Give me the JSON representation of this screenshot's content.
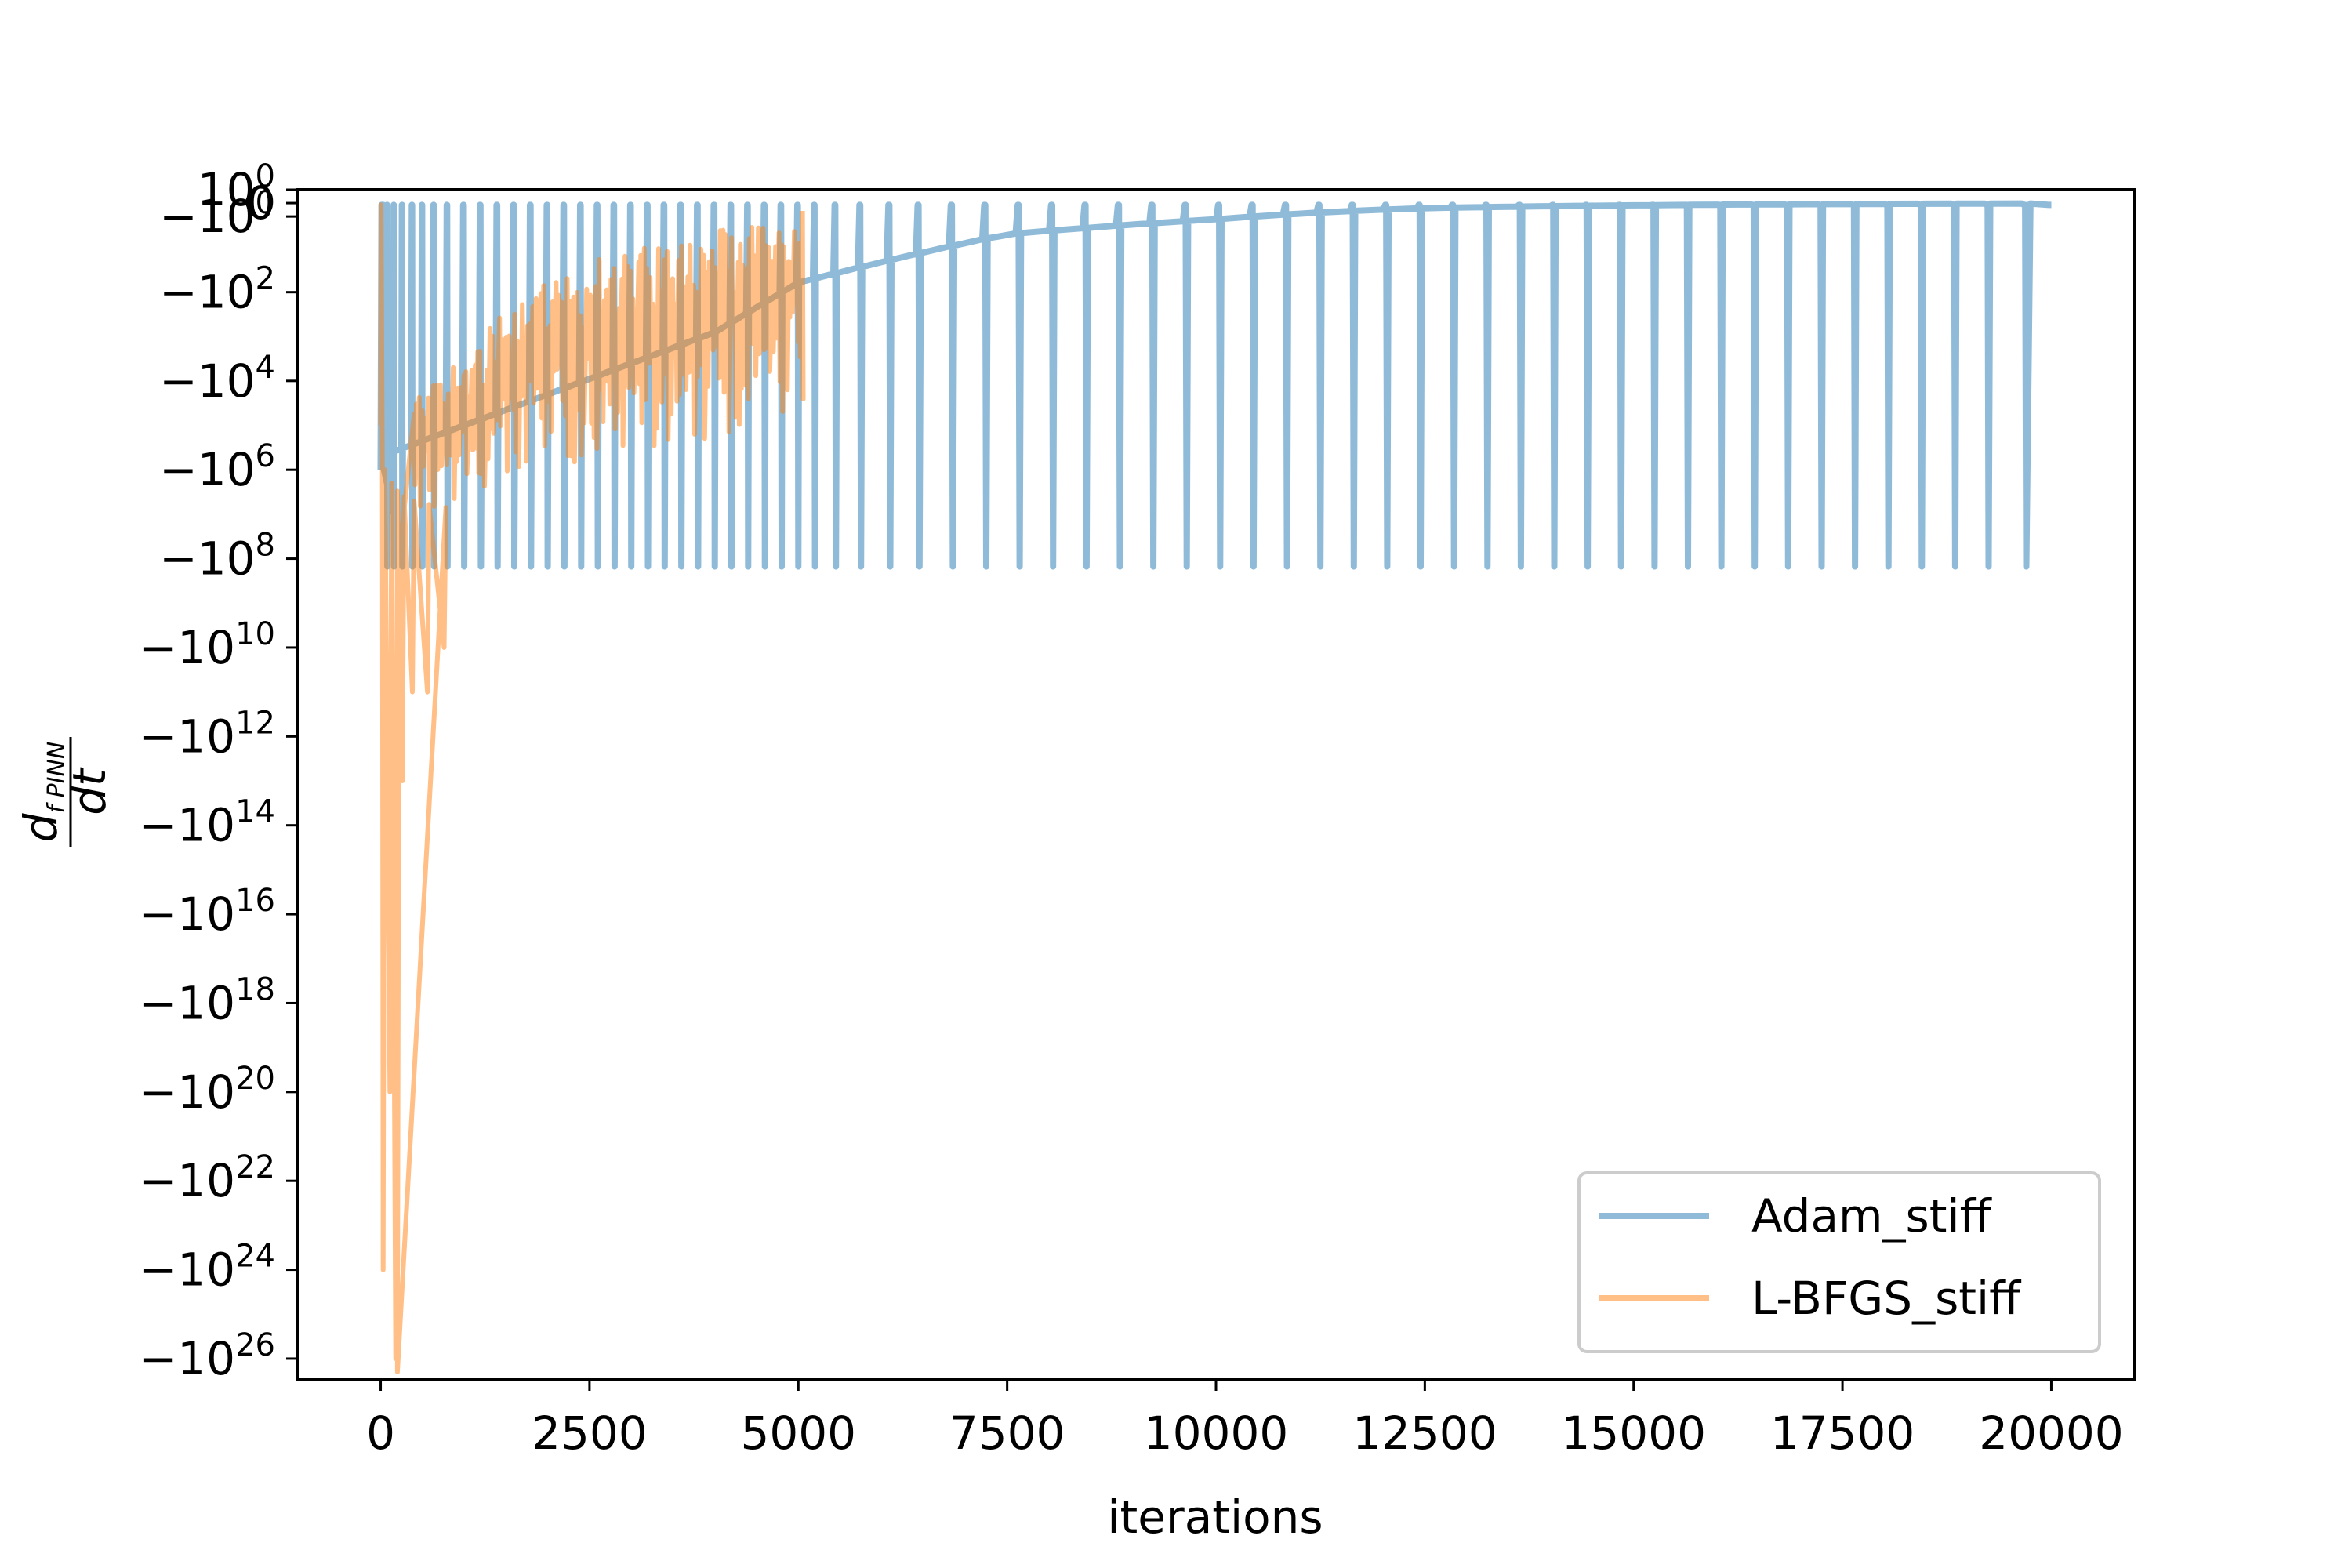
{
  "chart_data": {
    "type": "line",
    "title": "",
    "xlabel": "iterations",
    "ylabel": "d_{f PINN} / dt",
    "xlim": [
      -1000,
      21000
    ],
    "xticks": [
      0,
      2500,
      5000,
      7500,
      10000,
      12500,
      15000,
      17500,
      20000
    ],
    "xtick_labels": [
      "0",
      "2500",
      "5000",
      "7500",
      "10000",
      "12500",
      "15000",
      "17500",
      "20000"
    ],
    "yscale": "symlog",
    "ylim": [
      -3e+26,
      1
    ],
    "yticks": [
      {
        "value": 1,
        "base": "10",
        "exp": "0",
        "sign": ""
      },
      {
        "value": 0,
        "base": "0",
        "exp": "",
        "sign": ""
      },
      {
        "value": -1,
        "base": "10",
        "exp": "0",
        "sign": "−"
      },
      {
        "value": -100.0,
        "base": "10",
        "exp": "2",
        "sign": "−"
      },
      {
        "value": -10000.0,
        "base": "10",
        "exp": "4",
        "sign": "−"
      },
      {
        "value": -1000000.0,
        "base": "10",
        "exp": "6",
        "sign": "−"
      },
      {
        "value": -100000000.0,
        "base": "10",
        "exp": "8",
        "sign": "−"
      },
      {
        "value": -10000000000.0,
        "base": "10",
        "exp": "10",
        "sign": "−"
      },
      {
        "value": -1000000000000.0,
        "base": "10",
        "exp": "12",
        "sign": "−"
      },
      {
        "value": -100000000000000.0,
        "base": "10",
        "exp": "14",
        "sign": "−"
      },
      {
        "value": -1e+16,
        "base": "10",
        "exp": "16",
        "sign": "−"
      },
      {
        "value": -1e+18,
        "base": "10",
        "exp": "18",
        "sign": "−"
      },
      {
        "value": -1e+20,
        "base": "10",
        "exp": "20",
        "sign": "−"
      },
      {
        "value": -1e+22,
        "base": "10",
        "exp": "22",
        "sign": "−"
      },
      {
        "value": -1e+24,
        "base": "10",
        "exp": "24",
        "sign": "−"
      },
      {
        "value": -1e+26,
        "base": "10",
        "exp": "26",
        "sign": "−"
      }
    ],
    "grid": false,
    "legend_position": "lower right",
    "series": [
      {
        "name": "Adam_stiff",
        "color": "#1f77b4",
        "alpha": 0.5,
        "x_max": 20000,
        "cycle_starts": [
          0,
          80,
          160,
          260,
          380,
          500,
          640,
          800,
          1000,
          1200,
          1400,
          1600,
          1800,
          2000,
          2200,
          2400,
          2600,
          2800,
          3000,
          3200,
          3400,
          3600,
          3800,
          4000,
          4200,
          4400,
          4600,
          4800,
          5000,
          5200,
          5450,
          5750,
          6100,
          6450,
          6850,
          7250,
          7650,
          8050,
          8450,
          8850,
          9250,
          9650,
          10050,
          10450,
          10850,
          11250,
          11650,
          12050,
          12450,
          12850,
          13250,
          13650,
          14050,
          14450,
          14850,
          15250,
          15650,
          16050,
          16450,
          16850,
          17250,
          17650,
          18050,
          18450,
          18850,
          19250,
          19700
        ],
        "cycle_low": -150000000.0,
        "cycle_high": -0.1,
        "envelope": [
          {
            "x": 0,
            "y": -500000.0
          },
          {
            "x": 1000,
            "y": -100000.0
          },
          {
            "x": 2000,
            "y": -20000.0
          },
          {
            "x": 3000,
            "y": -4000.0
          },
          {
            "x": 4000,
            "y": -800
          },
          {
            "x": 5000,
            "y": -60
          },
          {
            "x": 6000,
            "y": -20
          },
          {
            "x": 7500,
            "y": -4
          },
          {
            "x": 10000,
            "y": -1.3
          },
          {
            "x": 12500,
            "y": -0.3
          },
          {
            "x": 20000,
            "y": -0.02
          }
        ]
      },
      {
        "name": "L-BFGS_stiff",
        "color": "#ff7f0e",
        "alpha": 0.5,
        "x_max": 5050,
        "min_point": {
          "x": 200,
          "y": -2e+26
        },
        "early_spikes": [
          {
            "x": 30,
            "y": -1e+24
          },
          {
            "x": 110,
            "y": -1e+20
          },
          {
            "x": 180,
            "y": -1e+26
          },
          {
            "x": 260,
            "y": -10000000000000.0
          },
          {
            "x": 380,
            "y": -100000000000.0
          },
          {
            "x": 560,
            "y": -100000000000.0
          },
          {
            "x": 760,
            "y": -10000000000.0
          }
        ],
        "envelope_high": [
          {
            "x": 500,
            "y": -10000.0
          },
          {
            "x": 1000,
            "y": -1000.0
          },
          {
            "x": 1500,
            "y": -100
          },
          {
            "x": 2000,
            "y": -20
          },
          {
            "x": 2500,
            "y": -5
          },
          {
            "x": 3000,
            "y": -3
          },
          {
            "x": 4000,
            "y": -1
          },
          {
            "x": 5000,
            "y": -0.3
          }
        ],
        "envelope_low": [
          {
            "x": 500,
            "y": -10000000.0
          },
          {
            "x": 1000,
            "y": -5000000.0
          },
          {
            "x": 1500,
            "y": -2000000.0
          },
          {
            "x": 2000,
            "y": -1000000.0
          },
          {
            "x": 3000,
            "y": -500000.0
          },
          {
            "x": 4000,
            "y": -200000.0
          },
          {
            "x": 5000,
            "y": -100000.0
          }
        ]
      }
    ]
  }
}
